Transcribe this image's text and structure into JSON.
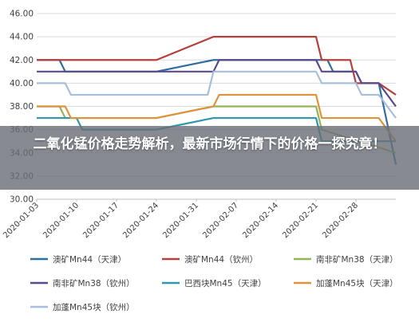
{
  "overlay": {
    "title": "二氧化锰价格走势解析，最新市场行情下的价格一探究竟！"
  },
  "chart_data": {
    "type": "line",
    "title": "",
    "xlabel": "",
    "ylabel": "",
    "ylim": [
      30,
      46
    ],
    "yticks": [
      "30.00",
      "32.00",
      "34.00",
      "36.00",
      "38.00",
      "40.00",
      "42.00",
      "44.00",
      "46.00"
    ],
    "x_range": [
      "2020-01-03",
      "2020-03-06"
    ],
    "xticks": [
      "2020-01-03",
      "2020-01-10",
      "2020-01-17",
      "2020-01-24",
      "2020-01-31",
      "2020-02-07",
      "2020-02-14",
      "2020-02-21",
      "2020-02-28"
    ],
    "grid": true,
    "legend_position": "bottom",
    "series": [
      {
        "name": "澳矿Mn44（天津）",
        "color": "#2e6e9e",
        "points": [
          [
            "2020-01-03",
            42
          ],
          [
            "2020-01-07",
            42
          ],
          [
            "2020-01-08",
            41
          ],
          [
            "2020-01-24",
            41
          ],
          [
            "2020-02-03",
            42
          ],
          [
            "2020-02-23",
            42
          ],
          [
            "2020-02-24",
            41
          ],
          [
            "2020-02-28",
            41
          ],
          [
            "2020-02-29",
            40
          ],
          [
            "2020-03-03",
            40
          ],
          [
            "2020-03-06",
            33
          ]
        ]
      },
      {
        "name": "澳矿Mn44（钦州）",
        "color": "#b5403c",
        "points": [
          [
            "2020-01-03",
            42
          ],
          [
            "2020-01-24",
            42
          ],
          [
            "2020-02-03",
            44
          ],
          [
            "2020-02-21",
            44
          ],
          [
            "2020-02-22",
            42
          ],
          [
            "2020-02-27",
            42
          ],
          [
            "2020-02-28",
            40
          ],
          [
            "2020-03-03",
            40
          ],
          [
            "2020-03-06",
            39
          ]
        ]
      },
      {
        "name": "南非矿Mn38（天津）",
        "color": "#93b556",
        "points": [
          [
            "2020-01-03",
            38
          ],
          [
            "2020-01-07",
            38
          ],
          [
            "2020-01-08",
            37
          ],
          [
            "2020-01-24",
            37
          ],
          [
            "2020-02-03",
            38
          ],
          [
            "2020-02-04",
            38
          ],
          [
            "2020-02-21",
            38
          ],
          [
            "2020-02-22",
            36
          ],
          [
            "2020-03-06",
            34
          ]
        ]
      },
      {
        "name": "南非矿Mn38（钦州）",
        "color": "#5a4a8c",
        "points": [
          [
            "2020-01-03",
            41
          ],
          [
            "2020-02-03",
            41
          ],
          [
            "2020-02-04",
            42
          ],
          [
            "2020-02-21",
            42
          ],
          [
            "2020-02-22",
            41
          ],
          [
            "2020-02-28",
            41
          ],
          [
            "2020-02-29",
            40
          ],
          [
            "2020-03-03",
            40
          ],
          [
            "2020-03-06",
            38
          ]
        ]
      },
      {
        "name": "巴西块Mn45（天津）",
        "color": "#2f97ae",
        "points": [
          [
            "2020-01-03",
            37
          ],
          [
            "2020-01-10",
            37
          ],
          [
            "2020-01-11",
            36
          ],
          [
            "2020-01-24",
            36
          ],
          [
            "2020-02-03",
            37
          ],
          [
            "2020-02-21",
            37
          ],
          [
            "2020-02-22",
            35
          ],
          [
            "2020-03-06",
            35
          ]
        ]
      },
      {
        "name": "加蓬Mn45块（天津）",
        "color": "#e0923a",
        "points": [
          [
            "2020-01-03",
            38
          ],
          [
            "2020-01-08",
            38
          ],
          [
            "2020-01-09",
            37
          ],
          [
            "2020-01-24",
            37
          ],
          [
            "2020-02-03",
            38
          ],
          [
            "2020-02-04",
            39
          ],
          [
            "2020-02-21",
            39
          ],
          [
            "2020-02-22",
            37
          ],
          [
            "2020-03-03",
            37
          ],
          [
            "2020-03-06",
            35
          ]
        ]
      },
      {
        "name": "加蓬Mn45块（钦州）",
        "color": "#a7bedd",
        "points": [
          [
            "2020-01-03",
            40
          ],
          [
            "2020-01-08",
            40
          ],
          [
            "2020-01-09",
            39
          ],
          [
            "2020-02-02",
            39
          ],
          [
            "2020-02-03",
            41
          ],
          [
            "2020-02-21",
            41
          ],
          [
            "2020-02-22",
            40
          ],
          [
            "2020-02-28",
            40
          ],
          [
            "2020-02-29",
            39
          ],
          [
            "2020-03-03",
            39
          ],
          [
            "2020-03-06",
            37
          ]
        ]
      }
    ]
  }
}
